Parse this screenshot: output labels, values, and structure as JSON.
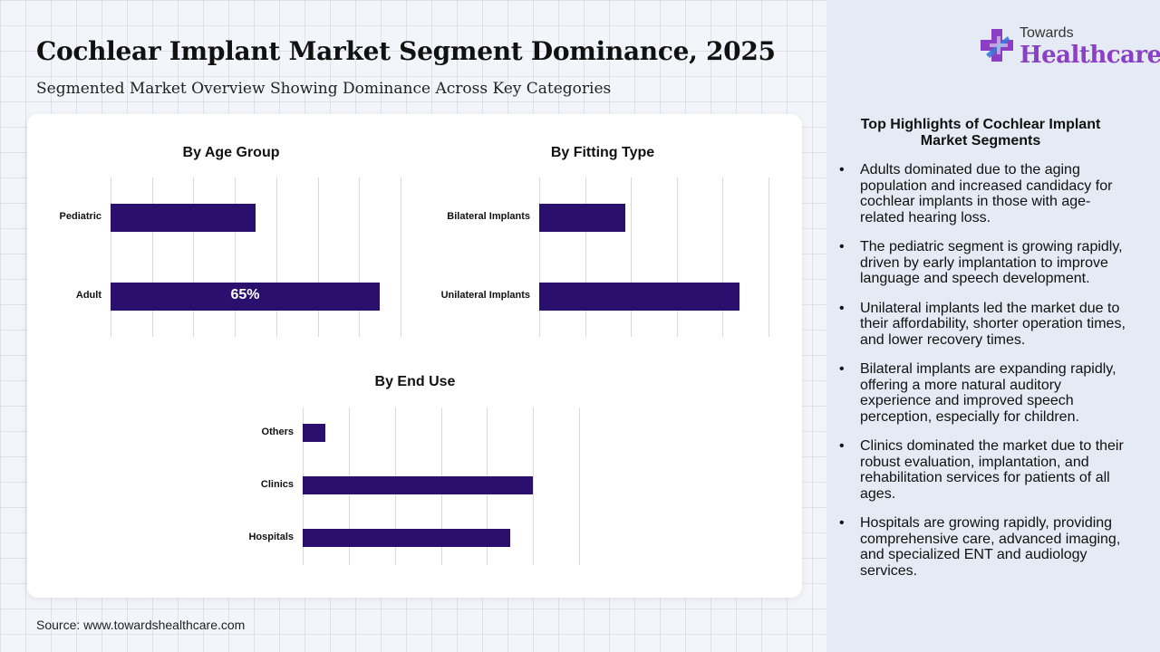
{
  "header": {
    "title": "Cochlear Implant Market Segment Dominance, 2025",
    "subtitle": "Segmented Market Overview Showing Dominance Across Key Categories"
  },
  "logo": {
    "line1": "Towards",
    "line2": "Healthcare"
  },
  "source": "Source: www.towardshealthcare.com",
  "colors": {
    "bar": "#2b0f6e",
    "logo_purple": "#8b3fc4",
    "logo_blue": "#3a78d6"
  },
  "chart_data": [
    {
      "type": "bar",
      "orientation": "horizontal",
      "title": "By Age Group",
      "categories": [
        "Pediatric",
        "Adult"
      ],
      "values": [
        35,
        65
      ],
      "xlim": [
        0,
        70
      ],
      "data_labels": [
        "",
        "65%"
      ],
      "grid": true
    },
    {
      "type": "bar",
      "orientation": "horizontal",
      "title": "By Fitting Type",
      "categories": [
        "Bilateral Implants",
        "Unilateral Implants"
      ],
      "values": [
        30,
        70
      ],
      "xlim": [
        0,
        80
      ],
      "grid": true
    },
    {
      "type": "bar",
      "orientation": "horizontal",
      "title": "By End Use",
      "categories": [
        "Others",
        "Clinics",
        "Hospitals"
      ],
      "values": [
        5,
        50,
        45
      ],
      "xlim": [
        0,
        60
      ],
      "grid": true
    }
  ],
  "highlights": {
    "title": "Top Highlights of Cochlear Implant Market Segments",
    "items": [
      "Adults dominated due to the aging population and increased candidacy for cochlear implants in those with age-related hearing loss.",
      "The pediatric segment is growing rapidly, driven by early implantation to improve language and speech development.",
      "Unilateral implants led the market due to their affordability, shorter operation times, and lower recovery times.",
      "Bilateral implants are expanding rapidly, offering a more natural auditory experience and improved speech perception, especially for children.",
      "Clinics dominated the market due to their robust evaluation, implantation, and rehabilitation services for patients of all ages.",
      "Hospitals are growing rapidly, providing comprehensive care, advanced imaging, and specialized ENT and audiology services."
    ]
  }
}
